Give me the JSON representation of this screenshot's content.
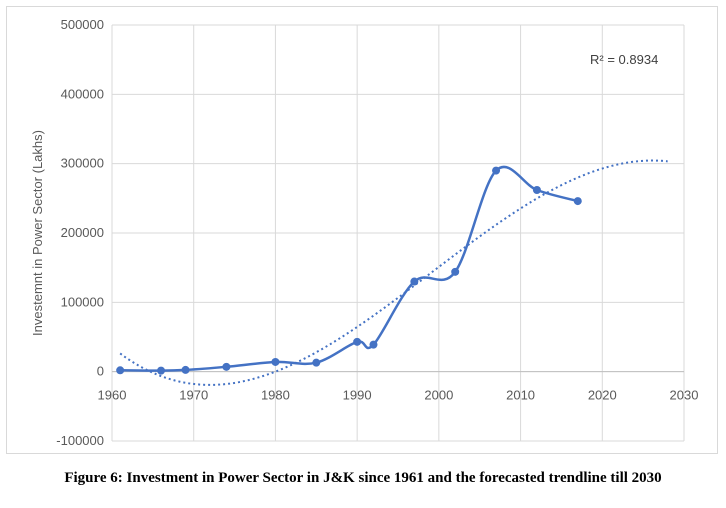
{
  "caption": "Figure 6: Investment in Power Sector in J&K since 1961 and the forecasted trendline till 2030",
  "chart_data": {
    "type": "scatter",
    "title": "",
    "xlabel": "",
    "ylabel": "Investemnt in Power Sector (Lakhs)",
    "xlim": [
      1960,
      2030
    ],
    "ylim": [
      -100000,
      500000
    ],
    "x_ticks": [
      1960,
      1970,
      1980,
      1990,
      2000,
      2010,
      2020,
      2030
    ],
    "y_ticks": [
      -100000,
      0,
      100000,
      200000,
      300000,
      400000,
      500000
    ],
    "grid": true,
    "series": [
      {
        "style": "smooth line with markers",
        "color": "#4472c4",
        "x": [
          1961,
          1966,
          1969,
          1974,
          1980,
          1985,
          1990,
          1992,
          1997,
          2002,
          2007,
          2012,
          2017
        ],
        "y": [
          2000,
          1500,
          2500,
          7000,
          14000,
          13000,
          43000,
          39000,
          130000,
          144000,
          290000,
          262000,
          246000
        ]
      }
    ],
    "trendline": {
      "type": "polynomial",
      "style": "dotted",
      "color": "#4472c4",
      "x_range": [
        1961,
        2028
      ],
      "r_squared_label": "R² = 0.8934"
    }
  }
}
